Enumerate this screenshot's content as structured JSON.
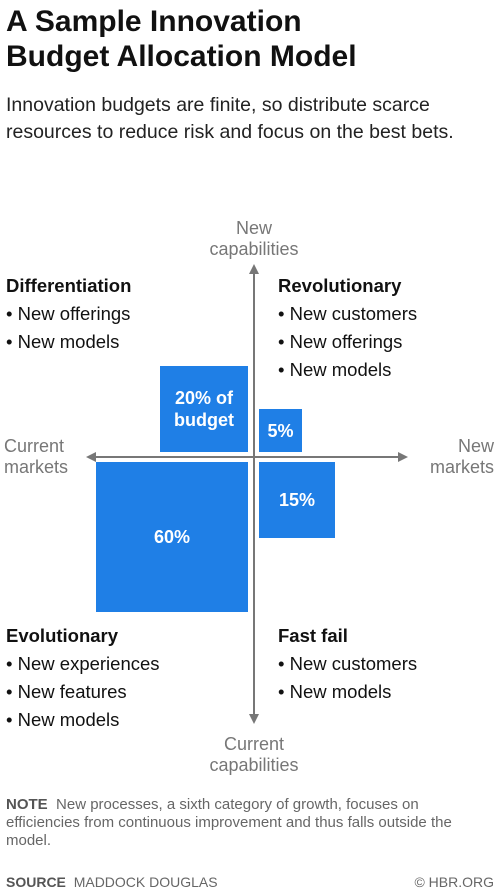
{
  "header": {
    "title_line1": "A Sample Innovation",
    "title_line2": "Budget Allocation Model",
    "subtitle": "Innovation budgets are finite, so distribute scarce resources to reduce risk and focus on the best bets."
  },
  "axes": {
    "top_line1": "New",
    "top_line2": "capabilities",
    "bottom_line1": "Current",
    "bottom_line2": "capabilities",
    "left_line1": "Current",
    "left_line2": "markets",
    "right_line1": "New",
    "right_line2": "markets",
    "color": "#777777"
  },
  "quadrants": {
    "differentiation": {
      "title": "Differentiation",
      "items": [
        "New offerings",
        "New models"
      ]
    },
    "revolutionary": {
      "title": "Revolutionary",
      "items": [
        "New customers",
        "New offerings",
        "New models"
      ]
    },
    "evolutionary": {
      "title": "Evolutionary",
      "items": [
        "New experiences",
        "New features",
        "New models"
      ]
    },
    "fast_fail": {
      "title": "Fast fail",
      "items": [
        "New customers",
        "New models"
      ]
    }
  },
  "allocations": {
    "differentiation": {
      "percent": 20,
      "label_line1": "20% of",
      "label_line2": "budget"
    },
    "revolutionary": {
      "percent": 5,
      "label": "5%"
    },
    "evolutionary": {
      "percent": 60,
      "label": "60%"
    },
    "fast_fail": {
      "percent": 15,
      "label": "15%"
    },
    "color": "#1f7fe6"
  },
  "footer": {
    "note_label": "NOTE",
    "note_text": "New processes, a sixth category of growth, focuses on efficiencies from continuous improvement and thus falls outside the model.",
    "source_label": "SOURCE",
    "source_text": "MADDOCK DOUGLAS",
    "credit": "© HBR.ORG"
  }
}
